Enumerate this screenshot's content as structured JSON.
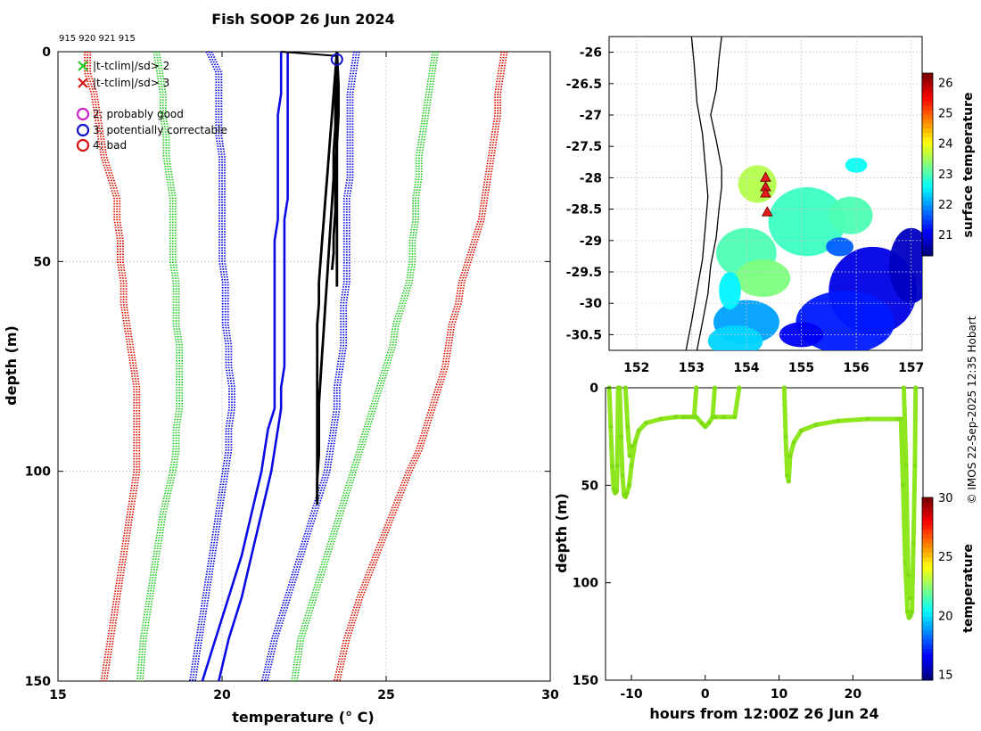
{
  "title": "Fish SOOP 26 Jun 2024",
  "profile_ids": "915 920 921 915",
  "credit": "© IMOS 22-Sep-2025 12:35 Hobart",
  "colors": {
    "bound2": "#22cc22",
    "bound3": "#dd1100",
    "clim": "#0a0ae6",
    "profile": "#000000",
    "qc2": "#cc22cc",
    "qc3": "#1111cc",
    "qc4": "#dd1111",
    "grid": "#c8c8c8"
  },
  "chart_data": [
    {
      "type": "line",
      "title": "Fish SOOP 26 Jun 2024",
      "xlabel": "temperature (° C)",
      "ylabel": "depth (m)",
      "xlim": [
        15,
        30
      ],
      "ylim": [
        0,
        150
      ],
      "y_inverted": true,
      "xticks": [
        "15",
        "20",
        "25",
        "30"
      ],
      "yticks": [
        "0",
        "50",
        "100",
        "150"
      ],
      "grid": true,
      "legend": [
        {
          "symbol": "x",
          "color": "green",
          "label": "|t-tclim|/sd> 2"
        },
        {
          "symbol": "x",
          "color": "red",
          "label": "|t-tclim|/sd> 3"
        },
        {
          "symbol": "o",
          "color": "magenta",
          "label": "2: probably good"
        },
        {
          "symbol": "o",
          "color": "blue",
          "label": "3: potentially correctable"
        },
        {
          "symbol": "o",
          "color": "red",
          "label": "4: bad"
        }
      ],
      "depth_grid": [
        0,
        5,
        10,
        15,
        20,
        25,
        30,
        35,
        40,
        45,
        50,
        55,
        60,
        65,
        70,
        75,
        80,
        85,
        90,
        95,
        100,
        110,
        120,
        130,
        140,
        150
      ],
      "climatology_mean": [
        [
          21.8,
          21.8,
          21.8,
          21.7,
          21.7,
          21.7,
          21.7,
          21.7,
          21.7,
          21.6,
          21.6,
          21.6,
          21.6,
          21.6,
          21.6,
          21.6,
          21.6,
          21.6,
          21.4,
          21.3,
          21.2,
          20.9,
          20.6,
          20.2,
          19.8,
          19.4
        ],
        [
          22.0,
          22.0,
          22.0,
          22.0,
          22.0,
          22.0,
          22.0,
          22.0,
          21.9,
          21.9,
          21.9,
          21.9,
          21.9,
          21.9,
          21.9,
          21.9,
          21.8,
          21.8,
          21.7,
          21.6,
          21.5,
          21.2,
          20.9,
          20.6,
          20.2,
          19.9
        ]
      ],
      "bounds": [
        {
          "name": "clim-1sd",
          "color": "blue",
          "left": [
            19.6,
            19.9,
            19.9,
            19.9,
            19.9,
            20.0,
            20.0,
            20.0,
            20.0,
            20.0,
            20.0,
            20.1,
            20.1,
            20.1,
            20.2,
            20.2,
            20.3,
            20.3,
            20.2,
            20.2,
            20.1,
            19.9,
            19.7,
            19.5,
            19.3,
            19.1
          ],
          "right": [
            24.1,
            24.0,
            23.9,
            23.9,
            23.9,
            23.9,
            23.9,
            23.8,
            23.8,
            23.8,
            23.8,
            23.8,
            23.7,
            23.7,
            23.7,
            23.6,
            23.5,
            23.5,
            23.4,
            23.3,
            23.2,
            22.8,
            22.4,
            22.0,
            21.6,
            21.3
          ]
        },
        {
          "name": "clim-2sd",
          "color": "green",
          "left": [
            18.0,
            18.1,
            18.2,
            18.2,
            18.3,
            18.3,
            18.4,
            18.5,
            18.5,
            18.5,
            18.5,
            18.6,
            18.6,
            18.6,
            18.7,
            18.7,
            18.7,
            18.7,
            18.6,
            18.6,
            18.5,
            18.2,
            18.0,
            17.8,
            17.6,
            17.5
          ],
          "right": [
            26.5,
            26.4,
            26.3,
            26.2,
            26.1,
            26.0,
            26.0,
            25.9,
            25.9,
            25.8,
            25.8,
            25.7,
            25.5,
            25.3,
            25.2,
            25.0,
            24.8,
            24.6,
            24.4,
            24.2,
            24.0,
            23.6,
            23.2,
            22.8,
            22.4,
            22.2
          ]
        },
        {
          "name": "clim-3sd",
          "color": "red",
          "left": [
            15.9,
            15.9,
            16.1,
            16.2,
            16.3,
            16.4,
            16.6,
            16.8,
            16.8,
            16.9,
            16.9,
            17.0,
            17.0,
            17.1,
            17.2,
            17.3,
            17.4,
            17.4,
            17.4,
            17.4,
            17.4,
            17.2,
            17.0,
            16.8,
            16.6,
            16.4
          ],
          "right": [
            28.6,
            28.5,
            28.4,
            28.4,
            28.3,
            28.2,
            28.1,
            28.0,
            27.9,
            27.7,
            27.5,
            27.3,
            27.2,
            27.0,
            26.9,
            26.8,
            26.6,
            26.4,
            26.2,
            26.0,
            25.7,
            25.2,
            24.7,
            24.2,
            23.8,
            23.5
          ]
        }
      ],
      "profiles": [
        {
          "t": [
            23.5,
            23.45,
            23.4,
            23.35,
            23.3,
            23.25,
            23.2,
            23.15,
            23.1,
            23.05,
            23.0,
            22.95,
            22.95,
            22.9,
            22.9,
            22.9,
            22.9,
            22.9,
            22.9,
            22.9,
            22.9,
            22.9
          ],
          "d": [
            0,
            5,
            10,
            15,
            20,
            25,
            30,
            35,
            40,
            45,
            50,
            55,
            60,
            65,
            70,
            75,
            80,
            85,
            90,
            95,
            100,
            107
          ]
        },
        {
          "t": [
            23.5,
            23.5,
            23.45,
            23.45,
            23.4,
            23.4,
            23.35,
            23.3,
            23.25,
            23.2,
            23.15,
            23.1,
            23.05,
            23.0,
            22.95,
            22.95,
            22.95,
            22.9,
            22.9
          ],
          "d": [
            0,
            6,
            12,
            18,
            24,
            30,
            36,
            42,
            48,
            54,
            60,
            66,
            72,
            78,
            84,
            90,
            96,
            102,
            108
          ]
        },
        {
          "t": [
            23.5,
            23.5,
            23.5,
            23.45,
            23.45,
            23.4,
            23.4,
            23.35
          ],
          "d": [
            0,
            10,
            20,
            30,
            38,
            44,
            48,
            52
          ]
        },
        {
          "t": [
            23.5,
            23.55,
            23.55,
            23.5,
            23.5,
            23.5,
            23.5,
            23.5
          ],
          "d": [
            0,
            8,
            15,
            22,
            30,
            38,
            48,
            56
          ]
        }
      ],
      "surface_line": {
        "t": [
          21.8,
          23.5
        ],
        "d": [
          0,
          1
        ]
      },
      "qc_marker": {
        "t": 23.5,
        "d": 1,
        "flag": "3: potentially correctable"
      }
    },
    {
      "type": "heatmap",
      "title": "surface temperature map",
      "xlim": [
        151.5,
        157.2
      ],
      "ylim": [
        -30.75,
        -25.75
      ],
      "xticks": [
        "152",
        "153",
        "154",
        "155",
        "156",
        "157"
      ],
      "yticks": [
        "-26",
        "-26.5",
        "-27",
        "-27.5",
        "-28",
        "-28.5",
        "-29",
        "-29.5",
        "-30",
        "-30.5"
      ],
      "grid": true,
      "colorbar": {
        "label": "surface temperature",
        "min": 20.3,
        "max": 26.3,
        "ticks": [
          "21",
          "22",
          "23",
          "24",
          "25",
          "26"
        ]
      },
      "stations": [
        {
          "lon": 154.35,
          "lat": -28.0
        },
        {
          "lon": 154.35,
          "lat": -28.15
        },
        {
          "lon": 154.35,
          "lat": -28.25
        },
        {
          "lon": 154.38,
          "lat": -28.55
        }
      ],
      "coastline": [
        [
          153.55,
          -25.75
        ],
        [
          153.5,
          -26.1
        ],
        [
          153.45,
          -26.6
        ],
        [
          153.35,
          -27.0
        ],
        [
          153.45,
          -27.4
        ],
        [
          153.55,
          -27.85
        ],
        [
          153.55,
          -28.15
        ],
        [
          153.5,
          -28.5
        ],
        [
          153.45,
          -28.95
        ],
        [
          153.35,
          -29.4
        ],
        [
          153.3,
          -29.85
        ],
        [
          153.2,
          -30.3
        ],
        [
          153.1,
          -30.75
        ]
      ],
      "coastline_inner": [
        [
          153.0,
          -25.75
        ],
        [
          153.05,
          -26.2
        ],
        [
          153.1,
          -26.8
        ],
        [
          153.2,
          -27.3
        ],
        [
          153.25,
          -27.8
        ],
        [
          153.3,
          -28.3
        ],
        [
          153.25,
          -28.8
        ],
        [
          153.2,
          -29.3
        ],
        [
          153.1,
          -29.8
        ],
        [
          153.0,
          -30.3
        ],
        [
          152.9,
          -30.75
        ]
      ]
    },
    {
      "type": "scatter",
      "title": "depth vs time",
      "xlabel": "hours from 12:00Z 26 Jun 24",
      "ylabel": "depth (m)",
      "xlim": [
        -13.5,
        29.5
      ],
      "ylim": [
        0,
        150
      ],
      "y_inverted": true,
      "xticks": [
        "-10",
        "0",
        "10",
        "20"
      ],
      "yticks": [
        "0",
        "50",
        "100",
        "150"
      ],
      "colorbar": {
        "label": "temperature",
        "min": 14.5,
        "max": 30,
        "ticks": [
          "15",
          "20",
          "25",
          "30"
        ]
      },
      "marker_color_value": 22,
      "segments": [
        {
          "x": [
            -13.0,
            -12.8,
            -12.6,
            -12.4,
            -12.2,
            -12.0,
            -11.9,
            -11.8
          ],
          "y": [
            0,
            20,
            40,
            52,
            54,
            53,
            40,
            0
          ]
        },
        {
          "x": [
            -11.6,
            -11.4,
            -11.2,
            -11.0,
            -10.8,
            -10.6,
            -10.3,
            -10.0,
            -9.5,
            -9.0,
            -8.0,
            -6.0,
            -4.0,
            -3.0
          ],
          "y": [
            0,
            25,
            45,
            55,
            56,
            54,
            50,
            40,
            28,
            22,
            18,
            16,
            15,
            15
          ]
        },
        {
          "x": [
            -10.8,
            -10.5,
            -10.2,
            -9.9
          ],
          "y": [
            0,
            20,
            35,
            30
          ]
        },
        {
          "x": [
            -3.0,
            -2.5,
            -2.0,
            -1.5,
            -1.2
          ],
          "y": [
            15,
            15,
            15,
            15,
            0
          ]
        },
        {
          "x": [
            -1.2,
            -0.5,
            0.0,
            0.5,
            1.0,
            1.3
          ],
          "y": [
            15,
            18,
            20,
            18,
            15,
            0
          ]
        },
        {
          "x": [
            1.3,
            2.5,
            4.0,
            4.6
          ],
          "y": [
            15,
            15,
            15,
            0
          ]
        },
        {
          "x": [
            10.7,
            10.9,
            11.1,
            11.3,
            11.5,
            12.0,
            13.0,
            15.0,
            18.0,
            22.0,
            26.0,
            26.5
          ],
          "y": [
            0,
            25,
            45,
            48,
            35,
            28,
            22,
            19,
            17,
            16,
            16,
            16
          ]
        },
        {
          "x": [
            26.5,
            26.8,
            27.1,
            27.4,
            27.6,
            27.8,
            28.0,
            28.2,
            28.4,
            28.5
          ],
          "y": [
            16,
            50,
            90,
            115,
            118,
            117,
            115,
            80,
            40,
            0
          ]
        },
        {
          "x": [
            26.9,
            27.2,
            27.5,
            27.8
          ],
          "y": [
            0,
            40,
            96,
            108
          ]
        }
      ]
    }
  ]
}
